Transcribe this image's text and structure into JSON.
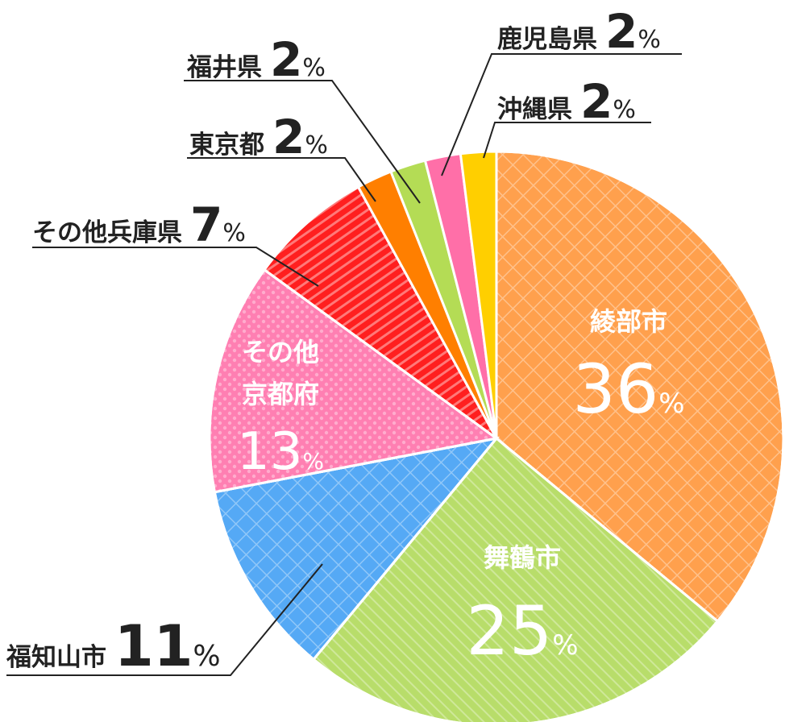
{
  "chart_data": {
    "type": "pie",
    "slices": [
      {
        "name": "綾部市",
        "value": 36,
        "color": "#FFA04D"
      },
      {
        "name": "舞鶴市",
        "value": 25,
        "color": "#B8DD6A"
      },
      {
        "name": "福知山市",
        "value": 11,
        "color": "#55A9F5"
      },
      {
        "name": "その他京都府",
        "value": 13,
        "color": "#FF7FB2"
      },
      {
        "name": "その他兵庫県",
        "value": 7,
        "color": "#FF1F1F"
      },
      {
        "name": "東京都",
        "value": 2,
        "color": "#FF7F00"
      },
      {
        "name": "福井県",
        "value": 2,
        "color": "#B4DC55"
      },
      {
        "name": "鹿児島県",
        "value": 2,
        "color": "#FF6FA8"
      },
      {
        "name": "沖縄県",
        "value": 2,
        "color": "#FFCF00"
      }
    ],
    "labels": {
      "ayabe": {
        "name": "綾部市",
        "value": "36",
        "unit": "%"
      },
      "maizuru": {
        "name": "舞鶴市",
        "value": "25",
        "unit": "%"
      },
      "kyoto": {
        "line1": "その他",
        "line2": "京都府",
        "value": "13",
        "unit": "%"
      },
      "fukuchiyama": {
        "name": "福知山市",
        "value": "11",
        "unit": "%"
      },
      "hyogo": {
        "name": "その他兵庫県",
        "value": "7",
        "unit": "%"
      },
      "tokyo": {
        "name": "東京都",
        "value": "2",
        "unit": "%"
      },
      "fukui": {
        "name": "福井県",
        "value": "2",
        "unit": "%"
      },
      "kagoshima": {
        "name": "鹿児島県",
        "value": "2",
        "unit": "%"
      },
      "okinawa": {
        "name": "沖縄県",
        "value": "2",
        "unit": "%"
      }
    }
  }
}
